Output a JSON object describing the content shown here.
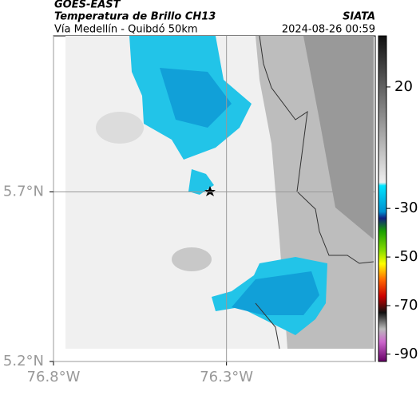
{
  "header": {
    "title": "GOES-EAST",
    "subtitle": "Temperatura de Brillo CH13",
    "source": "SIATA",
    "location": "Vía Medellín - Quibdó 50km",
    "timestamp": "2024-08-26 00:59"
  },
  "map": {
    "xlim": [
      -76.8,
      -75.87
    ],
    "ylim": [
      5.2,
      6.16
    ],
    "xticks": [
      {
        "value": -76.8,
        "label": "76.8°W"
      },
      {
        "value": -76.3,
        "label": "76.3°W"
      }
    ],
    "yticks": [
      {
        "value": 5.7,
        "label": "5.7°N"
      },
      {
        "value": 5.2,
        "label": "5.2°N"
      }
    ]
  },
  "colorbar": {
    "lim": [
      41,
      -93
    ],
    "ticks": [
      20,
      -30,
      -50,
      -70,
      -90
    ]
  }
}
